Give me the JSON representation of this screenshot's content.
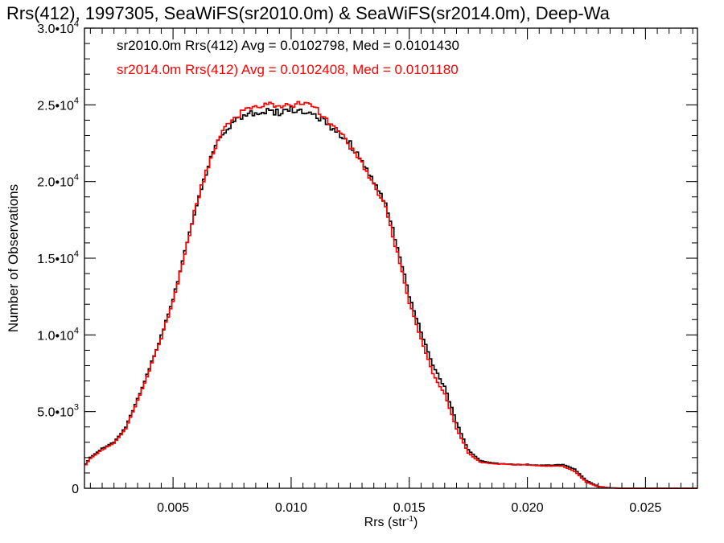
{
  "chart_data": {
    "type": "line",
    "title": "Rrs(412), 1997305, SeaWiFS(sr2010.0m) & SeaWiFS(sr2014.0m), Deep-Wa",
    "xlabel": "Rrs (str",
    "xlabel_sup": "-1",
    "xlabel_close": ")",
    "ylabel": "Number of Observations",
    "xlim": [
      0.00125,
      0.0272
    ],
    "ylim": [
      0,
      30000
    ],
    "x_ticks": [
      {
        "value": 0.005,
        "label": "0.005"
      },
      {
        "value": 0.01,
        "label": "0.010"
      },
      {
        "value": 0.015,
        "label": "0.015"
      },
      {
        "value": 0.02,
        "label": "0.020"
      },
      {
        "value": 0.025,
        "label": "0.025"
      }
    ],
    "y_ticks": [
      {
        "value": 0,
        "mant": "0",
        "exp": ""
      },
      {
        "value": 5000,
        "mant": "5.0•10",
        "exp": "3"
      },
      {
        "value": 10000,
        "mant": "1.0•10",
        "exp": "4"
      },
      {
        "value": 15000,
        "mant": "1.5•10",
        "exp": "4"
      },
      {
        "value": 20000,
        "mant": "2.0•10",
        "exp": "4"
      },
      {
        "value": 25000,
        "mant": "2.5•10",
        "exp": "4"
      },
      {
        "value": 30000,
        "mant": "3.0•10",
        "exp": "4"
      }
    ],
    "grid": false,
    "legend_placement": "top-left",
    "series": [
      {
        "name": "sr2010.0m Rrs(412) Avg = 0.0102798, Med = 0.0101430",
        "color": "#000000",
        "x": [
          0.00125,
          0.0015,
          0.002,
          0.0025,
          0.003,
          0.0035,
          0.004,
          0.0045,
          0.005,
          0.0055,
          0.006,
          0.0065,
          0.007,
          0.0075,
          0.008,
          0.0085,
          0.009,
          0.0095,
          0.01,
          0.0105,
          0.011,
          0.0115,
          0.012,
          0.0125,
          0.013,
          0.0135,
          0.014,
          0.0145,
          0.015,
          0.0155,
          0.016,
          0.0165,
          0.017,
          0.0175,
          0.018,
          0.0185,
          0.019,
          0.0195,
          0.02,
          0.0205,
          0.021,
          0.0215,
          0.022,
          0.0225,
          0.023,
          0.0235,
          0.024,
          0.025,
          0.026,
          0.0272
        ],
        "y": [
          1500,
          2000,
          2600,
          3000,
          4000,
          5800,
          7800,
          9900,
          12300,
          15400,
          18600,
          21100,
          22900,
          23800,
          24300,
          24500,
          24600,
          24500,
          24700,
          24600,
          24400,
          23800,
          23200,
          22500,
          21200,
          19900,
          18600,
          15800,
          12500,
          10200,
          8000,
          6600,
          4300,
          2500,
          1800,
          1650,
          1600,
          1550,
          1550,
          1500,
          1500,
          1550,
          1250,
          500,
          120,
          30,
          0,
          0,
          0,
          0
        ]
      },
      {
        "name": "sr2014.0m Rrs(412) Avg = 0.0102408, Med = 0.0101180",
        "color": "#ff0000",
        "x": [
          0.00125,
          0.0015,
          0.002,
          0.0025,
          0.003,
          0.0035,
          0.004,
          0.0045,
          0.005,
          0.0055,
          0.006,
          0.0065,
          0.007,
          0.0075,
          0.008,
          0.0085,
          0.009,
          0.0095,
          0.01,
          0.0105,
          0.011,
          0.0115,
          0.012,
          0.0125,
          0.013,
          0.0135,
          0.014,
          0.0145,
          0.015,
          0.0155,
          0.016,
          0.0165,
          0.017,
          0.0175,
          0.018,
          0.0185,
          0.019,
          0.0195,
          0.02,
          0.0205,
          0.021,
          0.0215,
          0.022,
          0.0225,
          0.023,
          0.0235,
          0.024,
          0.025,
          0.026,
          0.0272
        ],
        "y": [
          1450,
          1950,
          2500,
          2950,
          3900,
          5700,
          7700,
          9800,
          12200,
          15300,
          18600,
          21100,
          23000,
          24000,
          24600,
          24900,
          25000,
          25000,
          25000,
          25100,
          24800,
          24000,
          23300,
          22300,
          21100,
          19900,
          18300,
          15300,
          12100,
          9700,
          7500,
          6100,
          3900,
          2300,
          1700,
          1600,
          1580,
          1530,
          1530,
          1470,
          1450,
          1450,
          1100,
          400,
          100,
          20,
          0,
          0,
          0,
          0
        ]
      }
    ]
  }
}
